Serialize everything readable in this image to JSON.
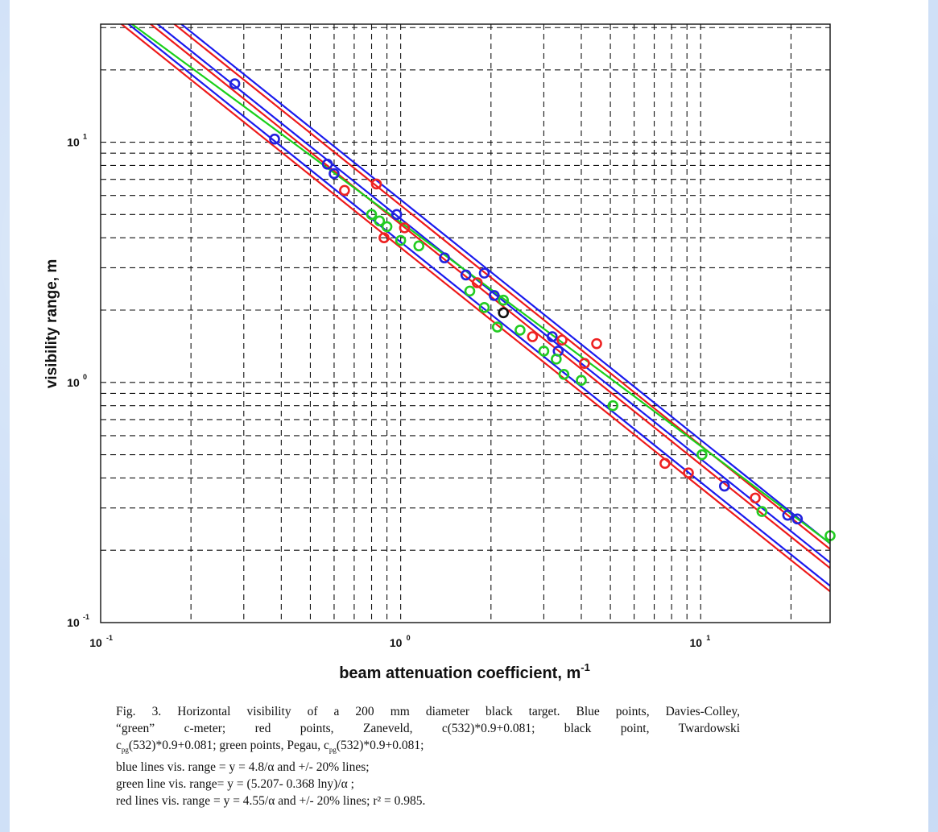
{
  "chart_data": {
    "type": "scatter",
    "x_scale": "log",
    "y_scale": "log",
    "xlim": [
      0.1,
      27
    ],
    "ylim": [
      0.1,
      31
    ],
    "xlabel": "beam attenuation coefficient, m",
    "xlabel_sup": "-1",
    "ylabel": "visibility range, m",
    "x_ticks": [
      {
        "base": "10",
        "exp": "-1",
        "value": 0.1
      },
      {
        "base": "10",
        "exp": "0",
        "value": 1
      },
      {
        "base": "10",
        "exp": "1",
        "value": 10
      }
    ],
    "y_ticks": [
      {
        "base": "10",
        "exp": "-1",
        "value": 0.1
      },
      {
        "base": "10",
        "exp": "0",
        "value": 1
      },
      {
        "base": "10",
        "exp": "1",
        "value": 10
      }
    ],
    "grid": true,
    "grid_style": "dashed",
    "lines": [
      {
        "name": "blue lines vis. range = 4.8/α",
        "color": "#1a1aee",
        "kind": "inverse",
        "k": 4.8
      },
      {
        "name": "blue +20%",
        "color": "#1a1aee",
        "kind": "inverse",
        "k": 5.76
      },
      {
        "name": "blue -20%",
        "color": "#1a1aee",
        "kind": "inverse",
        "k": 3.84
      },
      {
        "name": "red lines vis. range = 4.55/α",
        "color": "#ee1a1a",
        "kind": "inverse",
        "k": 4.55
      },
      {
        "name": "red +20%",
        "color": "#ee1a1a",
        "kind": "inverse",
        "k": 5.46
      },
      {
        "name": "red -20%",
        "color": "#ee1a1a",
        "kind": "inverse",
        "k": 3.64
      },
      {
        "name": "green line vis. range = (5.207 - 0.368 ln y)/α",
        "color": "#1ad01a",
        "kind": "green"
      }
    ],
    "series": [
      {
        "name": "Blue points, Davies-Colley",
        "color": "#2222dd",
        "points": [
          [
            0.28,
            17.5
          ],
          [
            0.38,
            10.3
          ],
          [
            0.57,
            8.1
          ],
          [
            0.6,
            7.4
          ],
          [
            0.97,
            5.0
          ],
          [
            1.4,
            3.3
          ],
          [
            1.65,
            2.8
          ],
          [
            1.9,
            2.85
          ],
          [
            2.05,
            2.3
          ],
          [
            3.2,
            1.55
          ],
          [
            3.35,
            1.35
          ],
          [
            12,
            0.37
          ],
          [
            19.5,
            0.28
          ],
          [
            21,
            0.27
          ]
        ]
      },
      {
        "name": "red points, Zaneveld",
        "color": "#ee2222",
        "points": [
          [
            0.65,
            6.3
          ],
          [
            0.83,
            6.7
          ],
          [
            0.88,
            4.0
          ],
          [
            1.03,
            4.4
          ],
          [
            1.8,
            2.6
          ],
          [
            2.75,
            1.55
          ],
          [
            3.45,
            1.5
          ],
          [
            4.1,
            1.2
          ],
          [
            4.5,
            1.45
          ],
          [
            7.6,
            0.46
          ],
          [
            9.1,
            0.42
          ],
          [
            15.2,
            0.33
          ]
        ]
      },
      {
        "name": "black point, Twardowski",
        "color": "#111111",
        "points": [
          [
            2.2,
            1.95
          ]
        ]
      },
      {
        "name": "green points, Pegau",
        "color": "#22cc22",
        "points": [
          [
            0.8,
            5.0
          ],
          [
            0.85,
            4.7
          ],
          [
            0.9,
            4.45
          ],
          [
            1.0,
            3.9
          ],
          [
            1.15,
            3.7
          ],
          [
            1.7,
            2.4
          ],
          [
            1.9,
            2.05
          ],
          [
            2.1,
            1.7
          ],
          [
            2.2,
            2.2
          ],
          [
            2.5,
            1.65
          ],
          [
            3.0,
            1.35
          ],
          [
            3.3,
            1.25
          ],
          [
            3.5,
            1.08
          ],
          [
            4.0,
            1.02
          ],
          [
            5.1,
            0.8
          ],
          [
            10.1,
            0.5
          ],
          [
            16,
            0.29
          ],
          [
            27,
            0.23
          ]
        ]
      }
    ]
  },
  "caption": {
    "line1": "Fig. 3. Horizontal visibility of a 200 mm diameter black target. Blue points, Davies-Colley,",
    "line2": "“green” c-meter; red points, Zaneveld, c(532)*0.9+0.081; black point, Twardowski",
    "line3_pre": "c",
    "line3_sub": "pg",
    "line3_mid": "(532)*0.9+0.081; green points, Pegau, c",
    "line3_sub2": "pg",
    "line3_post": "(532)*0.9+0.081;",
    "line4": "blue lines vis. range = y = 4.8/α and +/- 20% lines;",
    "line5": "green line vis. range= y = (5.207- 0.368 lny)/α ;",
    "line6": "red lines vis. range = y = 4.55/α and +/- 20% lines; r² = 0.985."
  }
}
